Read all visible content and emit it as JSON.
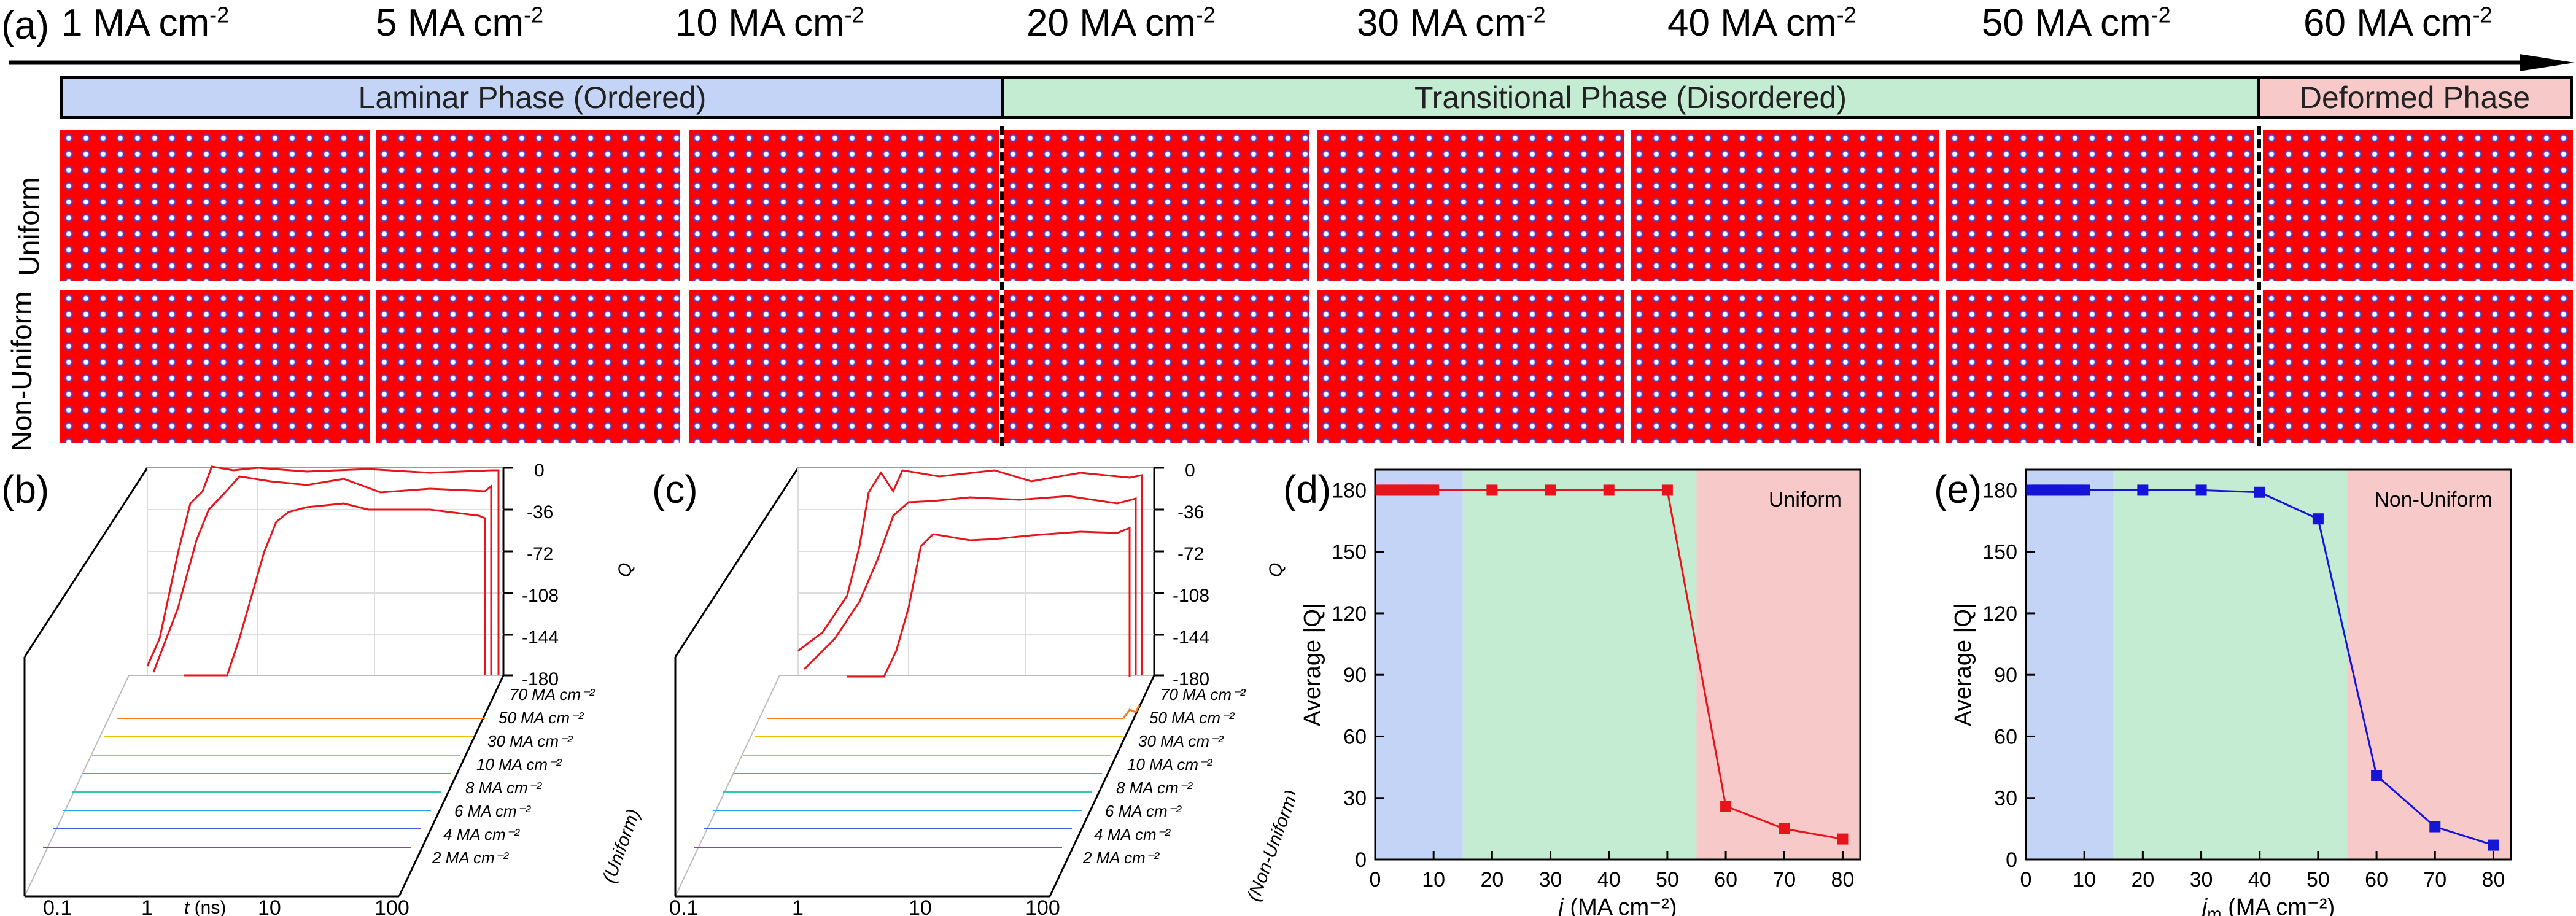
{
  "panel_a": {
    "label": "(a)",
    "currents": [
      {
        "value": "1 MA cm",
        "sup": "-2"
      },
      {
        "value": "5 MA cm",
        "sup": "-2"
      },
      {
        "value": "10 MA cm",
        "sup": "-2"
      },
      {
        "value": "20 MA cm",
        "sup": "-2"
      },
      {
        "value": "30 MA cm",
        "sup": "-2"
      },
      {
        "value": "40 MA cm",
        "sup": "-2"
      },
      {
        "value": "50 MA cm",
        "sup": "-2"
      },
      {
        "value": "60 MA cm",
        "sup": "-2"
      }
    ],
    "phases": [
      {
        "label": "Laminar Phase (Ordered)",
        "color": "#c4d4f6"
      },
      {
        "label": "Transitional Phase (Disordered)",
        "color": "#c4ecd3"
      },
      {
        "label": "Deformed Phase",
        "color": "#f7c9c9"
      }
    ],
    "rows": [
      "Uniform",
      "Non-Uniform"
    ]
  },
  "panel_b": {
    "label": "(b)",
    "z_axis_label": "Q",
    "z_ticks": [
      "0",
      "-36",
      "-72",
      "-108",
      "-144",
      "-180"
    ],
    "x_ticks": [
      "0.1",
      "1",
      "10",
      "100"
    ],
    "x_label_var": "t",
    "x_label_unit": " (ns)",
    "series_labels": [
      "70 MA cm⁻²",
      "50 MA cm⁻²",
      "30 MA cm⁻²",
      "10 MA cm⁻²",
      "8 MA cm⁻²",
      "6 MA cm⁻²",
      "4 MA cm⁻²",
      "2 MA cm⁻²"
    ],
    "group_label": "(Uniform)"
  },
  "panel_c": {
    "label": "(c)",
    "z_axis_label": "Q",
    "z_ticks": [
      "0",
      "-36",
      "-72",
      "-108",
      "-144",
      "-180"
    ],
    "x_ticks": [
      "0.1",
      "1",
      "10",
      "100"
    ],
    "series_labels": [
      "70 MA cm⁻²",
      "50 MA cm⁻²",
      "30 MA cm⁻²",
      "10 MA cm⁻²",
      "8 MA cm⁻²",
      "6 MA cm⁻²",
      "4 MA cm⁻²",
      "2 MA cm⁻²"
    ],
    "group_label": "(Non-Uniform)"
  },
  "chart_data": [
    {
      "type": "line",
      "panel": "(d)",
      "title": "Uniform",
      "xlabel_var": "j",
      "xlabel_unit": " (MA cm⁻²)",
      "ylabel": "Average |Q|",
      "xlim": [
        0,
        83
      ],
      "ylim": [
        0,
        190
      ],
      "x_ticks": [
        0,
        10,
        20,
        30,
        40,
        50,
        60,
        70,
        80
      ],
      "y_ticks": [
        0,
        30,
        60,
        90,
        120,
        150,
        180
      ],
      "x": [
        1,
        2,
        3,
        4,
        5,
        6,
        7,
        8,
        9,
        10,
        20,
        30,
        40,
        50,
        60,
        70,
        80
      ],
      "y": [
        180,
        180,
        180,
        180,
        180,
        180,
        180,
        180,
        180,
        180,
        180,
        180,
        180,
        180,
        26,
        15,
        10
      ],
      "color": "#e8141b",
      "regions": [
        {
          "from": 0,
          "to": 15,
          "color": "#c4d4f6"
        },
        {
          "from": 15,
          "to": 55,
          "color": "#c4ecd3"
        },
        {
          "from": 55,
          "to": 83,
          "color": "#f7c9c9"
        }
      ]
    },
    {
      "type": "line",
      "panel": "(e)",
      "title": "Non-Uniform",
      "xlabel_var": "j",
      "xlabel_sub": "m",
      "xlabel_unit": " (MA cm⁻²)",
      "ylabel": "Average |Q|",
      "xlim": [
        0,
        83
      ],
      "ylim": [
        0,
        190
      ],
      "x_ticks": [
        0,
        10,
        20,
        30,
        40,
        50,
        60,
        70,
        80
      ],
      "y_ticks": [
        0,
        30,
        60,
        90,
        120,
        150,
        180
      ],
      "x": [
        1,
        2,
        3,
        4,
        5,
        6,
        7,
        8,
        9,
        10,
        20,
        30,
        40,
        50,
        60,
        70,
        80
      ],
      "y": [
        180,
        180,
        180,
        180,
        180,
        180,
        180,
        180,
        180,
        180,
        180,
        180,
        179,
        166,
        41,
        16,
        7
      ],
      "color": "#1515d8",
      "regions": [
        {
          "from": 0,
          "to": 15,
          "color": "#c4d4f6"
        },
        {
          "from": 15,
          "to": 55,
          "color": "#c4ecd3"
        },
        {
          "from": 55,
          "to": 83,
          "color": "#f7c9c9"
        }
      ]
    }
  ]
}
